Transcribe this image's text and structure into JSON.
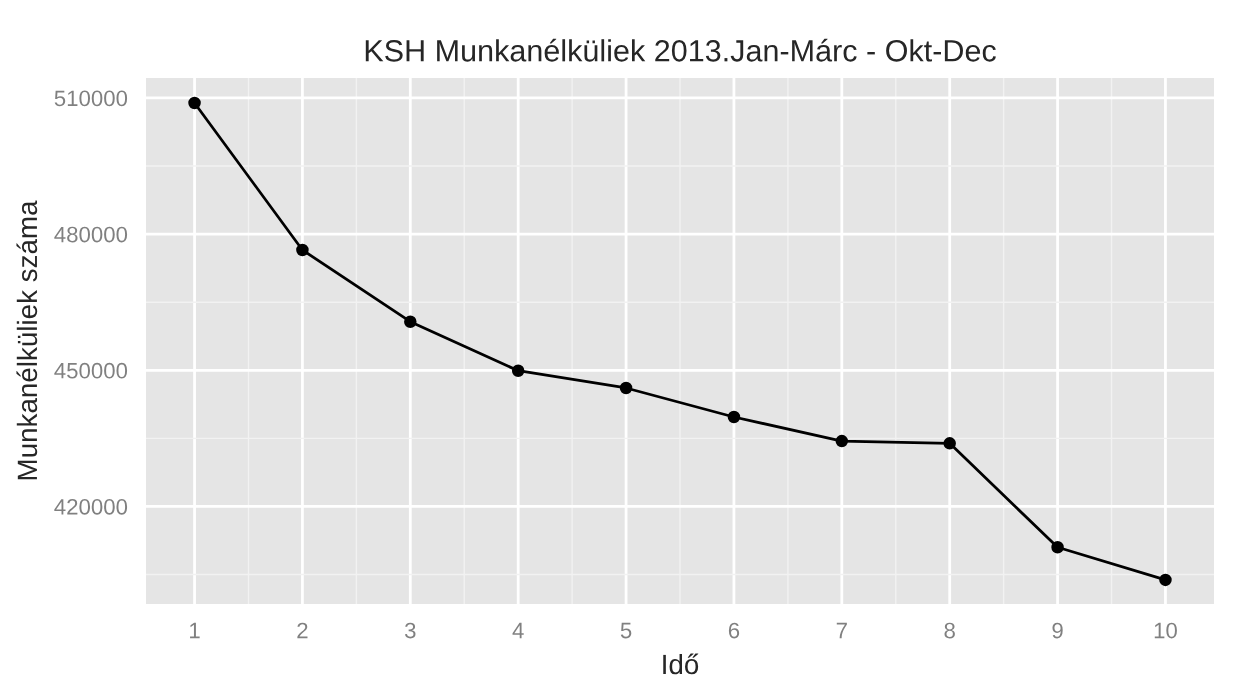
{
  "chart_data": {
    "type": "line",
    "title": "KSH Munkanélküliek 2013.Jan-Márc - Okt-Dec",
    "xlabel": "Idő",
    "ylabel": "Munkanélküliek száma",
    "x": [
      1,
      2,
      3,
      4,
      5,
      6,
      7,
      8,
      9,
      10
    ],
    "series": [
      {
        "color": "#000000",
        "values": [
          508900,
          476500,
          460700,
          449900,
          446100,
          439700,
          434400,
          433900,
          411000,
          403800
        ]
      }
    ],
    "xlim": [
      0.55,
      10.45
    ],
    "xticks": [
      1,
      2,
      3,
      4,
      5,
      6,
      7,
      8,
      9,
      10
    ],
    "ylim": [
      398500,
      514400
    ],
    "yticks": [
      420000,
      450000,
      480000,
      510000
    ],
    "grid": true,
    "marker": "circle",
    "line_style": "solid"
  }
}
